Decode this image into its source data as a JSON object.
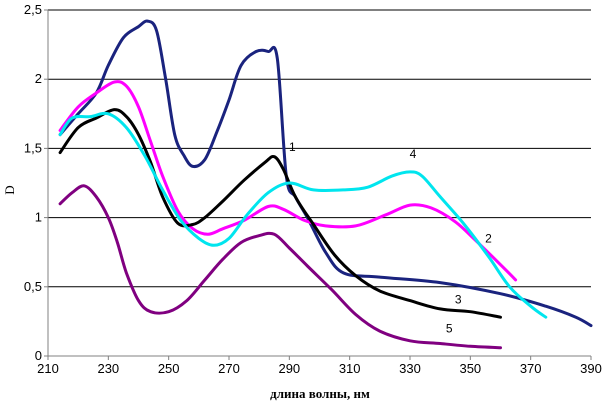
{
  "chart_data": {
    "type": "line",
    "title": "",
    "xlabel": "длина волны, нм",
    "ylabel": "D",
    "xlim": [
      210,
      390
    ],
    "ylim": [
      0,
      2.5
    ],
    "x_ticks": [
      "210",
      "230",
      "250",
      "270",
      "290",
      "310",
      "330",
      "350",
      "370",
      "390"
    ],
    "y_ticks": [
      "0",
      "0,5",
      "1",
      "1,5",
      "2",
      "2,5"
    ],
    "grid": "horizontal",
    "legend": "none",
    "series": [
      {
        "name": "1",
        "color": "#1a237e",
        "points": [
          [
            214,
            1.6
          ],
          [
            220,
            1.75
          ],
          [
            226,
            1.9
          ],
          [
            230,
            2.1
          ],
          [
            235,
            2.3
          ],
          [
            240,
            2.38
          ],
          [
            243,
            2.42
          ],
          [
            246,
            2.35
          ],
          [
            249,
            2.0
          ],
          [
            252,
            1.6
          ],
          [
            255,
            1.45
          ],
          [
            258,
            1.37
          ],
          [
            262,
            1.42
          ],
          [
            266,
            1.62
          ],
          [
            270,
            1.85
          ],
          [
            274,
            2.1
          ],
          [
            279,
            2.2
          ],
          [
            283,
            2.2
          ],
          [
            286,
            2.15
          ],
          [
            289,
            1.3
          ],
          [
            292,
            1.15
          ],
          [
            296,
            1.0
          ],
          [
            302,
            0.75
          ],
          [
            308,
            0.6
          ],
          [
            320,
            0.57
          ],
          [
            340,
            0.53
          ],
          [
            360,
            0.45
          ],
          [
            375,
            0.36
          ],
          [
            385,
            0.28
          ],
          [
            390,
            0.22
          ]
        ]
      },
      {
        "name": "2",
        "color": "#ff00ff",
        "points": [
          [
            214,
            1.63
          ],
          [
            220,
            1.8
          ],
          [
            226,
            1.9
          ],
          [
            232,
            1.98
          ],
          [
            236,
            1.95
          ],
          [
            240,
            1.8
          ],
          [
            244,
            1.55
          ],
          [
            248,
            1.3
          ],
          [
            253,
            1.05
          ],
          [
            258,
            0.92
          ],
          [
            263,
            0.88
          ],
          [
            268,
            0.92
          ],
          [
            275,
            0.98
          ],
          [
            283,
            1.08
          ],
          [
            288,
            1.06
          ],
          [
            295,
            0.98
          ],
          [
            302,
            0.94
          ],
          [
            312,
            0.94
          ],
          [
            322,
            1.02
          ],
          [
            330,
            1.09
          ],
          [
            337,
            1.07
          ],
          [
            345,
            0.97
          ],
          [
            352,
            0.83
          ],
          [
            360,
            0.66
          ],
          [
            365,
            0.55
          ]
        ]
      },
      {
        "name": "3",
        "color": "#000000",
        "points": [
          [
            214,
            1.47
          ],
          [
            220,
            1.65
          ],
          [
            226,
            1.72
          ],
          [
            232,
            1.78
          ],
          [
            236,
            1.73
          ],
          [
            240,
            1.6
          ],
          [
            244,
            1.4
          ],
          [
            248,
            1.15
          ],
          [
            253,
            0.96
          ],
          [
            258,
            0.95
          ],
          [
            262,
            1.0
          ],
          [
            268,
            1.12
          ],
          [
            275,
            1.27
          ],
          [
            282,
            1.4
          ],
          [
            285,
            1.44
          ],
          [
            288,
            1.35
          ],
          [
            292,
            1.15
          ],
          [
            298,
            0.95
          ],
          [
            305,
            0.73
          ],
          [
            312,
            0.58
          ],
          [
            320,
            0.47
          ],
          [
            330,
            0.4
          ],
          [
            340,
            0.34
          ],
          [
            350,
            0.32
          ],
          [
            360,
            0.28
          ]
        ]
      },
      {
        "name": "4",
        "color": "#00e5ee",
        "points": [
          [
            214,
            1.6
          ],
          [
            218,
            1.72
          ],
          [
            224,
            1.73
          ],
          [
            230,
            1.75
          ],
          [
            236,
            1.65
          ],
          [
            242,
            1.45
          ],
          [
            248,
            1.2
          ],
          [
            254,
            0.98
          ],
          [
            260,
            0.85
          ],
          [
            265,
            0.8
          ],
          [
            270,
            0.85
          ],
          [
            276,
            1.02
          ],
          [
            283,
            1.18
          ],
          [
            290,
            1.25
          ],
          [
            298,
            1.2
          ],
          [
            308,
            1.2
          ],
          [
            316,
            1.22
          ],
          [
            324,
            1.3
          ],
          [
            330,
            1.33
          ],
          [
            334,
            1.3
          ],
          [
            340,
            1.15
          ],
          [
            348,
            0.95
          ],
          [
            356,
            0.72
          ],
          [
            363,
            0.5
          ],
          [
            370,
            0.36
          ],
          [
            375,
            0.28
          ]
        ]
      },
      {
        "name": "5",
        "color": "#800080",
        "points": [
          [
            214,
            1.1
          ],
          [
            218,
            1.18
          ],
          [
            222,
            1.23
          ],
          [
            226,
            1.15
          ],
          [
            230,
            1.0
          ],
          [
            233,
            0.82
          ],
          [
            236,
            0.6
          ],
          [
            240,
            0.4
          ],
          [
            244,
            0.32
          ],
          [
            250,
            0.32
          ],
          [
            256,
            0.4
          ],
          [
            262,
            0.55
          ],
          [
            268,
            0.7
          ],
          [
            274,
            0.82
          ],
          [
            280,
            0.87
          ],
          [
            285,
            0.88
          ],
          [
            290,
            0.78
          ],
          [
            296,
            0.65
          ],
          [
            304,
            0.48
          ],
          [
            312,
            0.3
          ],
          [
            320,
            0.18
          ],
          [
            330,
            0.11
          ],
          [
            340,
            0.09
          ],
          [
            350,
            0.07
          ],
          [
            360,
            0.06
          ]
        ]
      }
    ],
    "series_labels": [
      {
        "text": "1",
        "x": 291,
        "y": 1.48
      },
      {
        "text": "2",
        "x": 356,
        "y": 0.82
      },
      {
        "text": "3",
        "x": 346,
        "y": 0.38
      },
      {
        "text": "4",
        "x": 331,
        "y": 1.43
      },
      {
        "text": "5",
        "x": 343,
        "y": 0.17
      }
    ]
  }
}
